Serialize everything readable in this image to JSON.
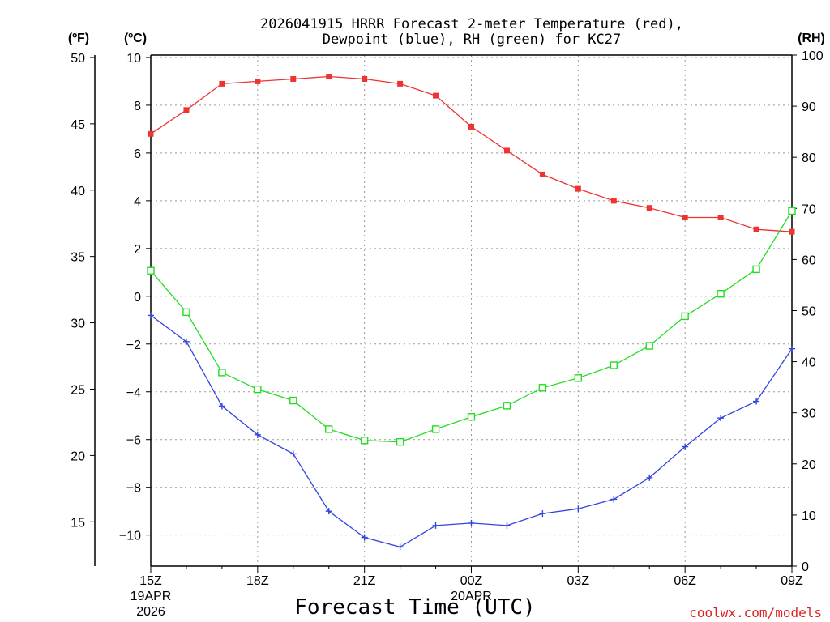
{
  "colors": {
    "temperature": "#ee3333",
    "dewpoint": "#3344dd",
    "rh": "#22dd22",
    "grid": "#999999",
    "credit": "#dd2222"
  },
  "chart_data": {
    "type": "line",
    "title": [
      "2026041915 HRRR Forecast 2-meter Temperature (red),",
      "Dewpoint (blue), RH (green) for KC27"
    ],
    "xlabel": "Forecast Time (UTC)",
    "credit": "coolwx.com/models",
    "units": {
      "fahrenheit": "(ºF)",
      "celsius": "(ºC)",
      "rh": "(RH)"
    },
    "x_hours": [
      15,
      16,
      17,
      18,
      19,
      20,
      21,
      22,
      23,
      24,
      25,
      26,
      27,
      28,
      29,
      30,
      31,
      32,
      33
    ],
    "x_ticks": [
      {
        "hour": 15,
        "label": "15Z",
        "date": "19APR",
        "year": "2026"
      },
      {
        "hour": 18,
        "label": "18Z"
      },
      {
        "hour": 21,
        "label": "21Z"
      },
      {
        "hour": 24,
        "label": "00Z",
        "date": "20APR"
      },
      {
        "hour": 27,
        "label": "03Z"
      },
      {
        "hour": 30,
        "label": "06Z"
      },
      {
        "hour": 33,
        "label": "09Z"
      }
    ],
    "xlim": [
      15,
      33
    ],
    "celsius_axis": {
      "ylim": [
        -11.3,
        10.1
      ],
      "ticks": [
        10,
        8,
        6,
        4,
        2,
        0,
        -2,
        -4,
        -6,
        -8,
        -10
      ],
      "tick_labels": [
        "10",
        "8",
        "6",
        "4",
        "2",
        "0",
        "−2",
        "−4",
        "−6",
        "−8",
        "−10"
      ]
    },
    "fahrenheit_axis": {
      "ticks": [
        50,
        45,
        40,
        35,
        30,
        25,
        20,
        15
      ],
      "tick_labels": [
        "50",
        "45",
        "40",
        "35",
        "30",
        "25",
        "20",
        "15"
      ]
    },
    "rh_axis": {
      "ylim": [
        0,
        100
      ],
      "ticks": [
        100,
        90,
        80,
        70,
        60,
        50,
        40,
        30,
        20,
        10,
        0
      ],
      "tick_labels": [
        "100",
        "90",
        "80",
        "70",
        "60",
        "50",
        "40",
        "30",
        "20",
        "10",
        "0"
      ]
    },
    "series": [
      {
        "name": "Temperature",
        "units": "C",
        "marker": "filled-square",
        "values": [
          6.8,
          7.8,
          8.9,
          9.0,
          9.1,
          9.2,
          9.1,
          8.9,
          8.4,
          7.1,
          6.1,
          5.1,
          4.5,
          4.0,
          3.7,
          3.3,
          3.3,
          2.8,
          2.7
        ]
      },
      {
        "name": "Dewpoint",
        "units": "C",
        "marker": "plus",
        "values": [
          -0.8,
          -1.9,
          -4.6,
          -5.8,
          -6.6,
          -9.0,
          -10.1,
          -10.5,
          -9.6,
          -9.5,
          -9.6,
          -9.1,
          -8.9,
          -8.5,
          -7.6,
          -6.3,
          -5.1,
          -4.4,
          -2.2
        ]
      },
      {
        "name": "RH",
        "units": "%",
        "marker": "open-square",
        "values": [
          57.8,
          49.7,
          37.9,
          34.6,
          32.4,
          26.8,
          24.6,
          24.3,
          26.8,
          29.2,
          31.4,
          34.9,
          36.8,
          39.3,
          43.1,
          48.9,
          53.3,
          58.1,
          69.5
        ]
      }
    ]
  }
}
